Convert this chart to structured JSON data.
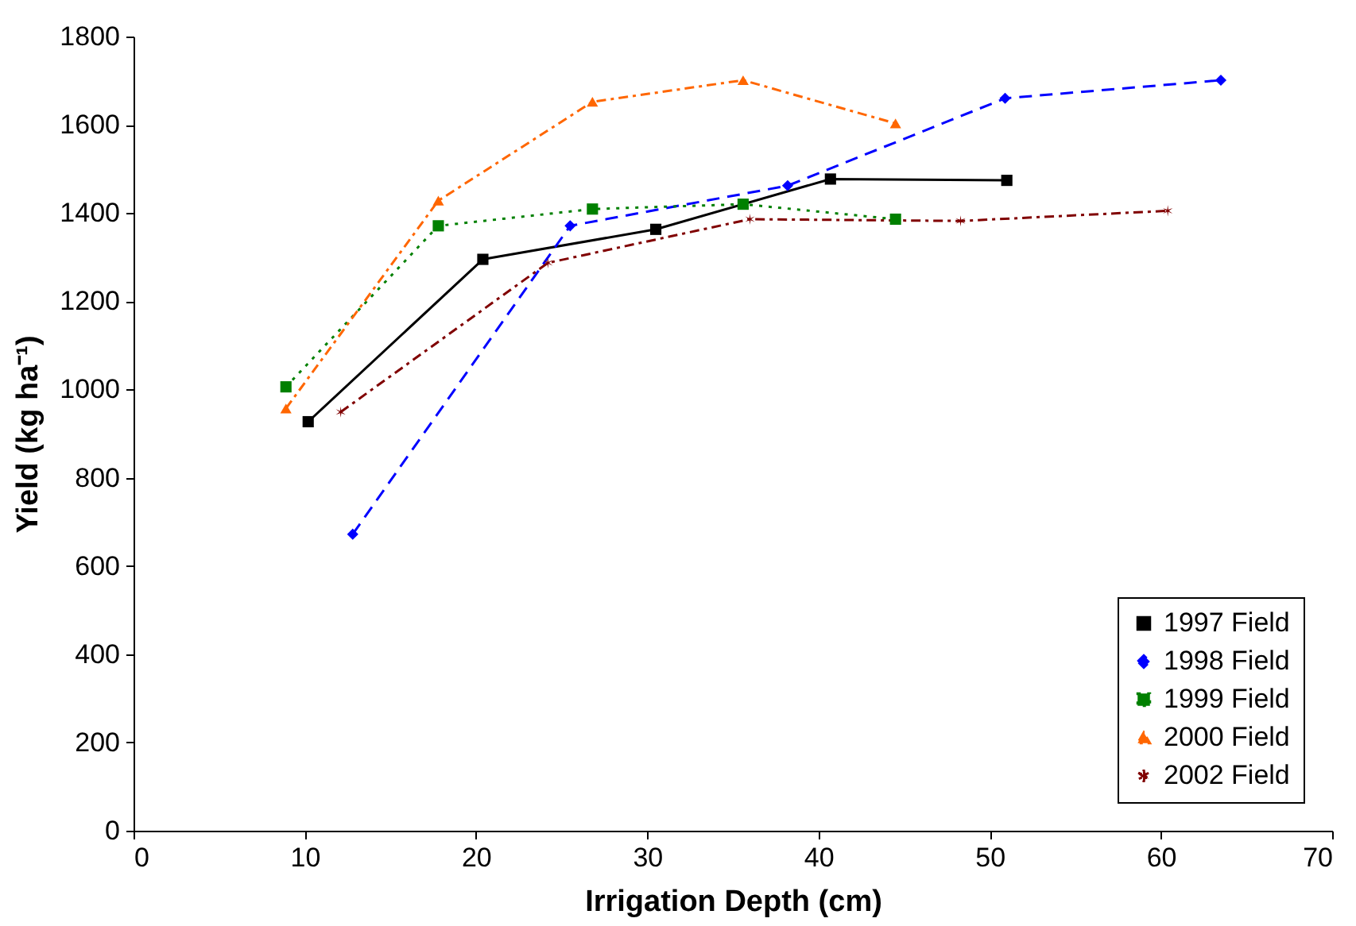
{
  "chart_data": {
    "type": "line",
    "xlabel": "Irrigation Depth (cm)",
    "ylabel": "Yield (kg ha⁻¹)",
    "xlim": [
      0,
      70
    ],
    "xticks": [
      0,
      10,
      20,
      30,
      40,
      50,
      60,
      70
    ],
    "ylim": [
      0,
      1800
    ],
    "yticks": [
      0,
      200,
      400,
      600,
      800,
      1000,
      1200,
      1400,
      1600,
      1800
    ],
    "grid": false,
    "legend": "bottom right",
    "series": [
      {
        "name": "1997 Field",
        "color": "#000000",
        "marker": "square",
        "line_style": "solid",
        "x": [
          10.2,
          20.4,
          30.5,
          40.7,
          51.0
        ],
        "values": [
          927,
          1295,
          1363,
          1477,
          1474
        ]
      },
      {
        "name": "1998 Field",
        "color": "#0000ff",
        "marker": "diamond",
        "line_style": "dashed",
        "x": [
          12.8,
          25.5,
          38.2,
          50.9,
          63.5
        ],
        "values": [
          672,
          1371,
          1462,
          1660,
          1701
        ]
      },
      {
        "name": "1999 Field",
        "color": "#008000",
        "marker": "square",
        "line_style": "dotted",
        "x": [
          8.9,
          17.8,
          26.8,
          35.6,
          44.5
        ],
        "values": [
          1006,
          1371,
          1409,
          1420,
          1386
        ]
      },
      {
        "name": "2000 Field",
        "color": "#ff6600",
        "marker": "triangle",
        "line_style": "dashdot",
        "x": [
          8.9,
          17.8,
          26.8,
          35.6,
          44.5
        ],
        "values": [
          957,
          1428,
          1652,
          1701,
          1603
        ]
      },
      {
        "name": "2002 Field",
        "color": "#800000",
        "marker": "cross",
        "line_style": "dashdot",
        "x": [
          12.1,
          24.2,
          36.0,
          48.3,
          60.4
        ],
        "values": [
          949,
          1287,
          1386,
          1382,
          1405
        ]
      }
    ]
  }
}
